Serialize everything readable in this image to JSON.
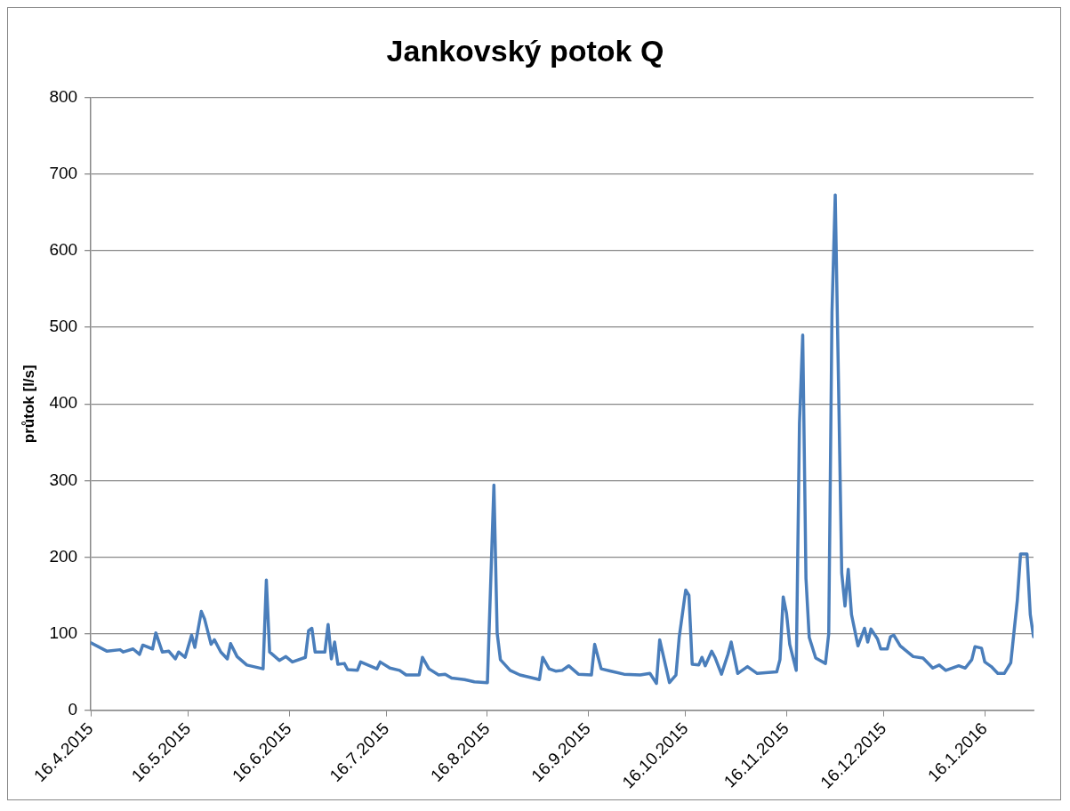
{
  "chart_data": {
    "type": "line",
    "title": "Jankovský potok Q",
    "ylabel": "průtok [l/s]",
    "x": [
      "2015-04-16",
      "2015-04-21",
      "2015-04-25",
      "2015-04-26",
      "2015-04-29",
      "2015-05-01",
      "2015-05-02",
      "2015-05-05",
      "2015-05-06",
      "2015-05-08",
      "2015-05-10",
      "2015-05-12",
      "2015-05-13",
      "2015-05-15",
      "2015-05-17",
      "2015-05-18",
      "2015-05-20",
      "2015-05-21",
      "2015-05-23",
      "2015-05-24",
      "2015-05-26",
      "2015-05-28",
      "2015-05-29",
      "2015-05-31",
      "2015-06-03",
      "2015-06-08",
      "2015-06-09",
      "2015-06-10",
      "2015-06-13",
      "2015-06-15",
      "2015-06-17",
      "2015-06-21",
      "2015-06-22",
      "2015-06-23",
      "2015-06-24",
      "2015-06-27",
      "2015-06-28",
      "2015-06-29",
      "2015-06-30",
      "2015-07-01",
      "2015-07-03",
      "2015-07-04",
      "2015-07-07",
      "2015-07-08",
      "2015-07-13",
      "2015-07-14",
      "2015-07-17",
      "2015-07-20",
      "2015-07-22",
      "2015-07-26",
      "2015-07-27",
      "2015-07-29",
      "2015-08-01",
      "2015-08-03",
      "2015-08-05",
      "2015-08-09",
      "2015-08-12",
      "2015-08-16",
      "2015-08-18",
      "2015-08-19",
      "2015-08-20",
      "2015-08-23",
      "2015-08-26",
      "2015-09-01",
      "2015-09-02",
      "2015-09-04",
      "2015-09-06",
      "2015-09-08",
      "2015-09-10",
      "2015-09-13",
      "2015-09-17",
      "2015-09-18",
      "2015-09-20",
      "2015-09-23",
      "2015-09-27",
      "2015-10-02",
      "2015-10-05",
      "2015-10-07",
      "2015-10-08",
      "2015-10-11",
      "2015-10-13",
      "2015-10-14",
      "2015-10-16",
      "2015-10-17",
      "2015-10-18",
      "2015-10-20",
      "2015-10-21",
      "2015-10-22",
      "2015-10-24",
      "2015-10-25",
      "2015-10-27",
      "2015-10-29",
      "2015-10-30",
      "2015-11-01",
      "2015-11-04",
      "2015-11-07",
      "2015-11-13",
      "2015-11-14",
      "2015-11-15",
      "2015-11-16",
      "2015-11-17",
      "2015-11-19",
      "2015-11-20",
      "2015-11-21",
      "2015-11-22",
      "2015-11-23",
      "2015-11-25",
      "2015-11-28",
      "2015-11-29",
      "2015-11-30",
      "2015-12-01",
      "2015-12-02",
      "2015-12-03",
      "2015-12-04",
      "2015-12-05",
      "2015-12-06",
      "2015-12-08",
      "2015-12-10",
      "2015-12-11",
      "2015-12-12",
      "2015-12-14",
      "2015-12-15",
      "2015-12-17",
      "2015-12-18",
      "2015-12-19",
      "2015-12-21",
      "2015-12-23",
      "2015-12-25",
      "2015-12-28",
      "2015-12-31",
      "2016-01-02",
      "2016-01-04",
      "2016-01-08",
      "2016-01-10",
      "2016-01-12",
      "2016-01-13",
      "2016-01-15",
      "2016-01-16",
      "2016-01-18",
      "2016-01-20",
      "2016-01-22",
      "2016-01-24",
      "2016-01-26",
      "2016-01-27",
      "2016-01-29",
      "2016-01-30",
      "2016-01-31"
    ],
    "series": [
      {
        "color": "#4a7ebb",
        "values": [
          88,
          77,
          79,
          76,
          80,
          73,
          85,
          80,
          101,
          76,
          77,
          67,
          76,
          69,
          98,
          82,
          129,
          119,
          86,
          92,
          76,
          67,
          87,
          70,
          59,
          54,
          170,
          76,
          65,
          70,
          63,
          69,
          104,
          107,
          76,
          76,
          112,
          67,
          89,
          60,
          61,
          53,
          52,
          63,
          54,
          63,
          55,
          52,
          46,
          46,
          69,
          54,
          46,
          47,
          42,
          40,
          37,
          36,
          294,
          101,
          66,
          52,
          46,
          40,
          69,
          54,
          51,
          52,
          58,
          47,
          46,
          86,
          54,
          51,
          47,
          46,
          48,
          35,
          92,
          36,
          46,
          95,
          157,
          150,
          60,
          59,
          69,
          58,
          77,
          69,
          47,
          73,
          89,
          48,
          57,
          48,
          50,
          66,
          148,
          127,
          86,
          52,
          375,
          490,
          172,
          95,
          68,
          61,
          100,
          520,
          673,
          430,
          179,
          136,
          184,
          125,
          84,
          107,
          89,
          106,
          93,
          80,
          80,
          96,
          98,
          84,
          77,
          70,
          68,
          55,
          59,
          52,
          58,
          55,
          66,
          83,
          81,
          63,
          57,
          48,
          48,
          62,
          143,
          204,
          204,
          125,
          96
        ]
      }
    ],
    "xlim": [
      "2015-04-16",
      "2016-01-31"
    ],
    "xticks": [
      {
        "value": "2015-04-16",
        "label": "16.4.2015"
      },
      {
        "value": "2015-05-16",
        "label": "16.5.2015"
      },
      {
        "value": "2015-06-16",
        "label": "16.6.2015"
      },
      {
        "value": "2015-07-16",
        "label": "16.7.2015"
      },
      {
        "value": "2015-08-16",
        "label": "16.8.2015"
      },
      {
        "value": "2015-09-16",
        "label": "16.9.2015"
      },
      {
        "value": "2015-10-16",
        "label": "16.10.2015"
      },
      {
        "value": "2015-11-16",
        "label": "16.11.2015"
      },
      {
        "value": "2015-12-16",
        "label": "16.12.2015"
      },
      {
        "value": "2016-01-16",
        "label": "16.1.2016"
      }
    ],
    "ylim": [
      0,
      800
    ],
    "yticks": [
      0,
      100,
      200,
      300,
      400,
      500,
      600,
      700,
      800
    ],
    "grid": "y",
    "legend": false,
    "marker": "none",
    "line_style": "solid"
  }
}
